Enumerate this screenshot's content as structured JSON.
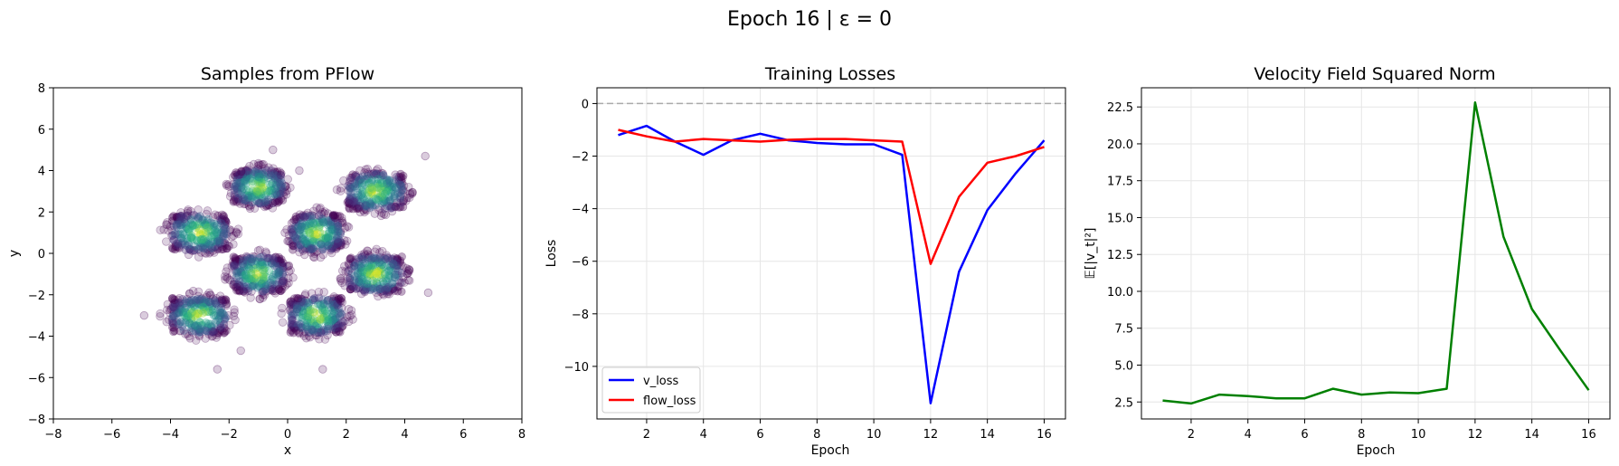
{
  "figure": {
    "title": "Epoch 16 | ε = 0"
  },
  "chart_data": [
    {
      "type": "scatter",
      "title": "Samples from PFlow",
      "xlabel": "x",
      "ylabel": "y",
      "xlim": [
        -8,
        8
      ],
      "ylim": [
        -8,
        8
      ],
      "xticks": [
        -8,
        -6,
        -4,
        -2,
        0,
        2,
        4,
        6,
        8
      ],
      "yticks": [
        -8,
        -6,
        -4,
        -2,
        0,
        2,
        4,
        6,
        8
      ],
      "grid": false,
      "colormap": "viridis (point density)",
      "clusters": [
        {
          "center": [
            -1.0,
            3.2
          ],
          "extent": [
            1.8,
            1.7
          ]
        },
        {
          "center": [
            3.0,
            3.0
          ],
          "extent": [
            2.0,
            1.8
          ]
        },
        {
          "center": [
            -3.0,
            1.0
          ],
          "extent": [
            2.0,
            1.8
          ]
        },
        {
          "center": [
            1.0,
            1.0
          ],
          "extent": [
            1.8,
            1.8
          ]
        },
        {
          "center": [
            -1.0,
            -1.0
          ],
          "extent": [
            1.8,
            1.8
          ]
        },
        {
          "center": [
            3.0,
            -1.0
          ],
          "extent": [
            1.9,
            1.8
          ]
        },
        {
          "center": [
            -3.0,
            -3.0
          ],
          "extent": [
            2.0,
            1.8
          ]
        },
        {
          "center": [
            1.0,
            -3.0
          ],
          "extent": [
            1.9,
            1.8
          ]
        }
      ],
      "outliers": [
        [
          -0.5,
          5.0
        ],
        [
          4.7,
          4.7
        ],
        [
          -2.4,
          -5.6
        ],
        [
          1.2,
          -5.6
        ],
        [
          -4.9,
          -3.0
        ],
        [
          4.8,
          -1.9
        ],
        [
          0.4,
          4.0
        ],
        [
          -1.6,
          -4.7
        ]
      ]
    },
    {
      "type": "line",
      "title": "Training Losses",
      "xlabel": "Epoch",
      "ylabel": "Loss",
      "xlim": [
        0.25,
        16.75
      ],
      "ylim": [
        -12.0,
        0.6
      ],
      "xticks": [
        2,
        4,
        6,
        8,
        10,
        12,
        14,
        16
      ],
      "yticks": [
        -10,
        -8,
        -6,
        -4,
        -2,
        0
      ],
      "grid": true,
      "legend_position": "lower left",
      "reference_line": {
        "y": 0,
        "style": "dashed",
        "color": "#aaaaaa"
      },
      "x": [
        1,
        2,
        3,
        4,
        5,
        6,
        7,
        8,
        9,
        10,
        11,
        12,
        13,
        14,
        15,
        16
      ],
      "series": [
        {
          "name": "v_loss",
          "color": "#0000ff",
          "values": [
            -1.2,
            -0.85,
            -1.45,
            -1.95,
            -1.4,
            -1.15,
            -1.4,
            -1.5,
            -1.55,
            -1.55,
            -1.95,
            -11.4,
            -6.4,
            -4.05,
            -2.65,
            -1.4
          ]
        },
        {
          "name": "flow_loss",
          "color": "#ff0000",
          "values": [
            -1.0,
            -1.25,
            -1.45,
            -1.35,
            -1.4,
            -1.45,
            -1.38,
            -1.35,
            -1.35,
            -1.4,
            -1.45,
            -6.1,
            -3.55,
            -2.25,
            -2.0,
            -1.65
          ]
        }
      ]
    },
    {
      "type": "line",
      "title": "Velocity Field Squared Norm",
      "xlabel": "Epoch",
      "ylabel": "𝔼[|v_t|²]",
      "xlim": [
        0.25,
        16.75
      ],
      "ylim": [
        1.35,
        23.8
      ],
      "xticks": [
        2,
        4,
        6,
        8,
        10,
        12,
        14,
        16
      ],
      "yticks": [
        2.5,
        5.0,
        7.5,
        10.0,
        12.5,
        15.0,
        17.5,
        20.0,
        22.5
      ],
      "ytick_labels": [
        "2.5",
        "5.0",
        "7.5",
        "10.0",
        "12.5",
        "15.0",
        "17.5",
        "20.0",
        "22.5"
      ],
      "grid": true,
      "x": [
        1,
        2,
        3,
        4,
        5,
        6,
        7,
        8,
        9,
        10,
        11,
        12,
        13,
        14,
        15,
        16
      ],
      "series": [
        {
          "color": "#008000",
          "values": [
            2.6,
            2.4,
            3.0,
            2.9,
            2.75,
            2.75,
            3.4,
            3.0,
            3.15,
            3.1,
            3.4,
            22.8,
            13.7,
            8.8,
            6.0,
            3.3
          ]
        }
      ]
    }
  ]
}
